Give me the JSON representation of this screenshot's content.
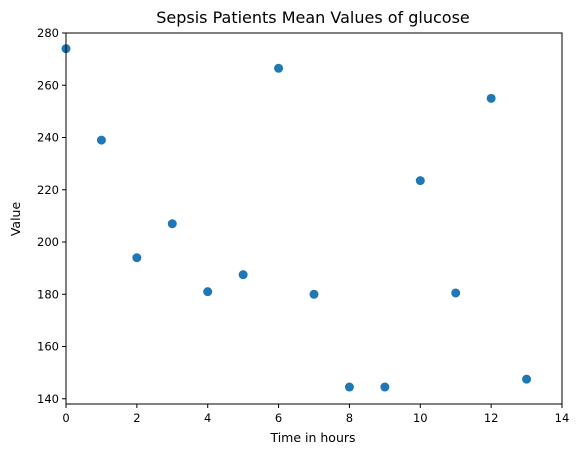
{
  "chart_data": {
    "type": "scatter",
    "title": "Sepsis Patients Mean Values of glucose",
    "xlabel": "Time in hours",
    "ylabel": "Value",
    "xlim": [
      0,
      14
    ],
    "ylim": [
      138,
      280
    ],
    "xticks": [
      0,
      2,
      4,
      6,
      8,
      10,
      12,
      14
    ],
    "yticks": [
      140,
      160,
      180,
      200,
      220,
      240,
      260,
      280
    ],
    "grid": false,
    "marker_color": "#1f77b4",
    "points": [
      {
        "x": 0,
        "y": 274
      },
      {
        "x": 1,
        "y": 239
      },
      {
        "x": 2,
        "y": 194
      },
      {
        "x": 3,
        "y": 207
      },
      {
        "x": 4,
        "y": 181
      },
      {
        "x": 5,
        "y": 187.5
      },
      {
        "x": 6,
        "y": 266.5
      },
      {
        "x": 7,
        "y": 180
      },
      {
        "x": 8,
        "y": 144.5
      },
      {
        "x": 9,
        "y": 144.5
      },
      {
        "x": 10,
        "y": 223.5
      },
      {
        "x": 11,
        "y": 180.5
      },
      {
        "x": 12,
        "y": 255
      },
      {
        "x": 13,
        "y": 147.5
      }
    ]
  }
}
